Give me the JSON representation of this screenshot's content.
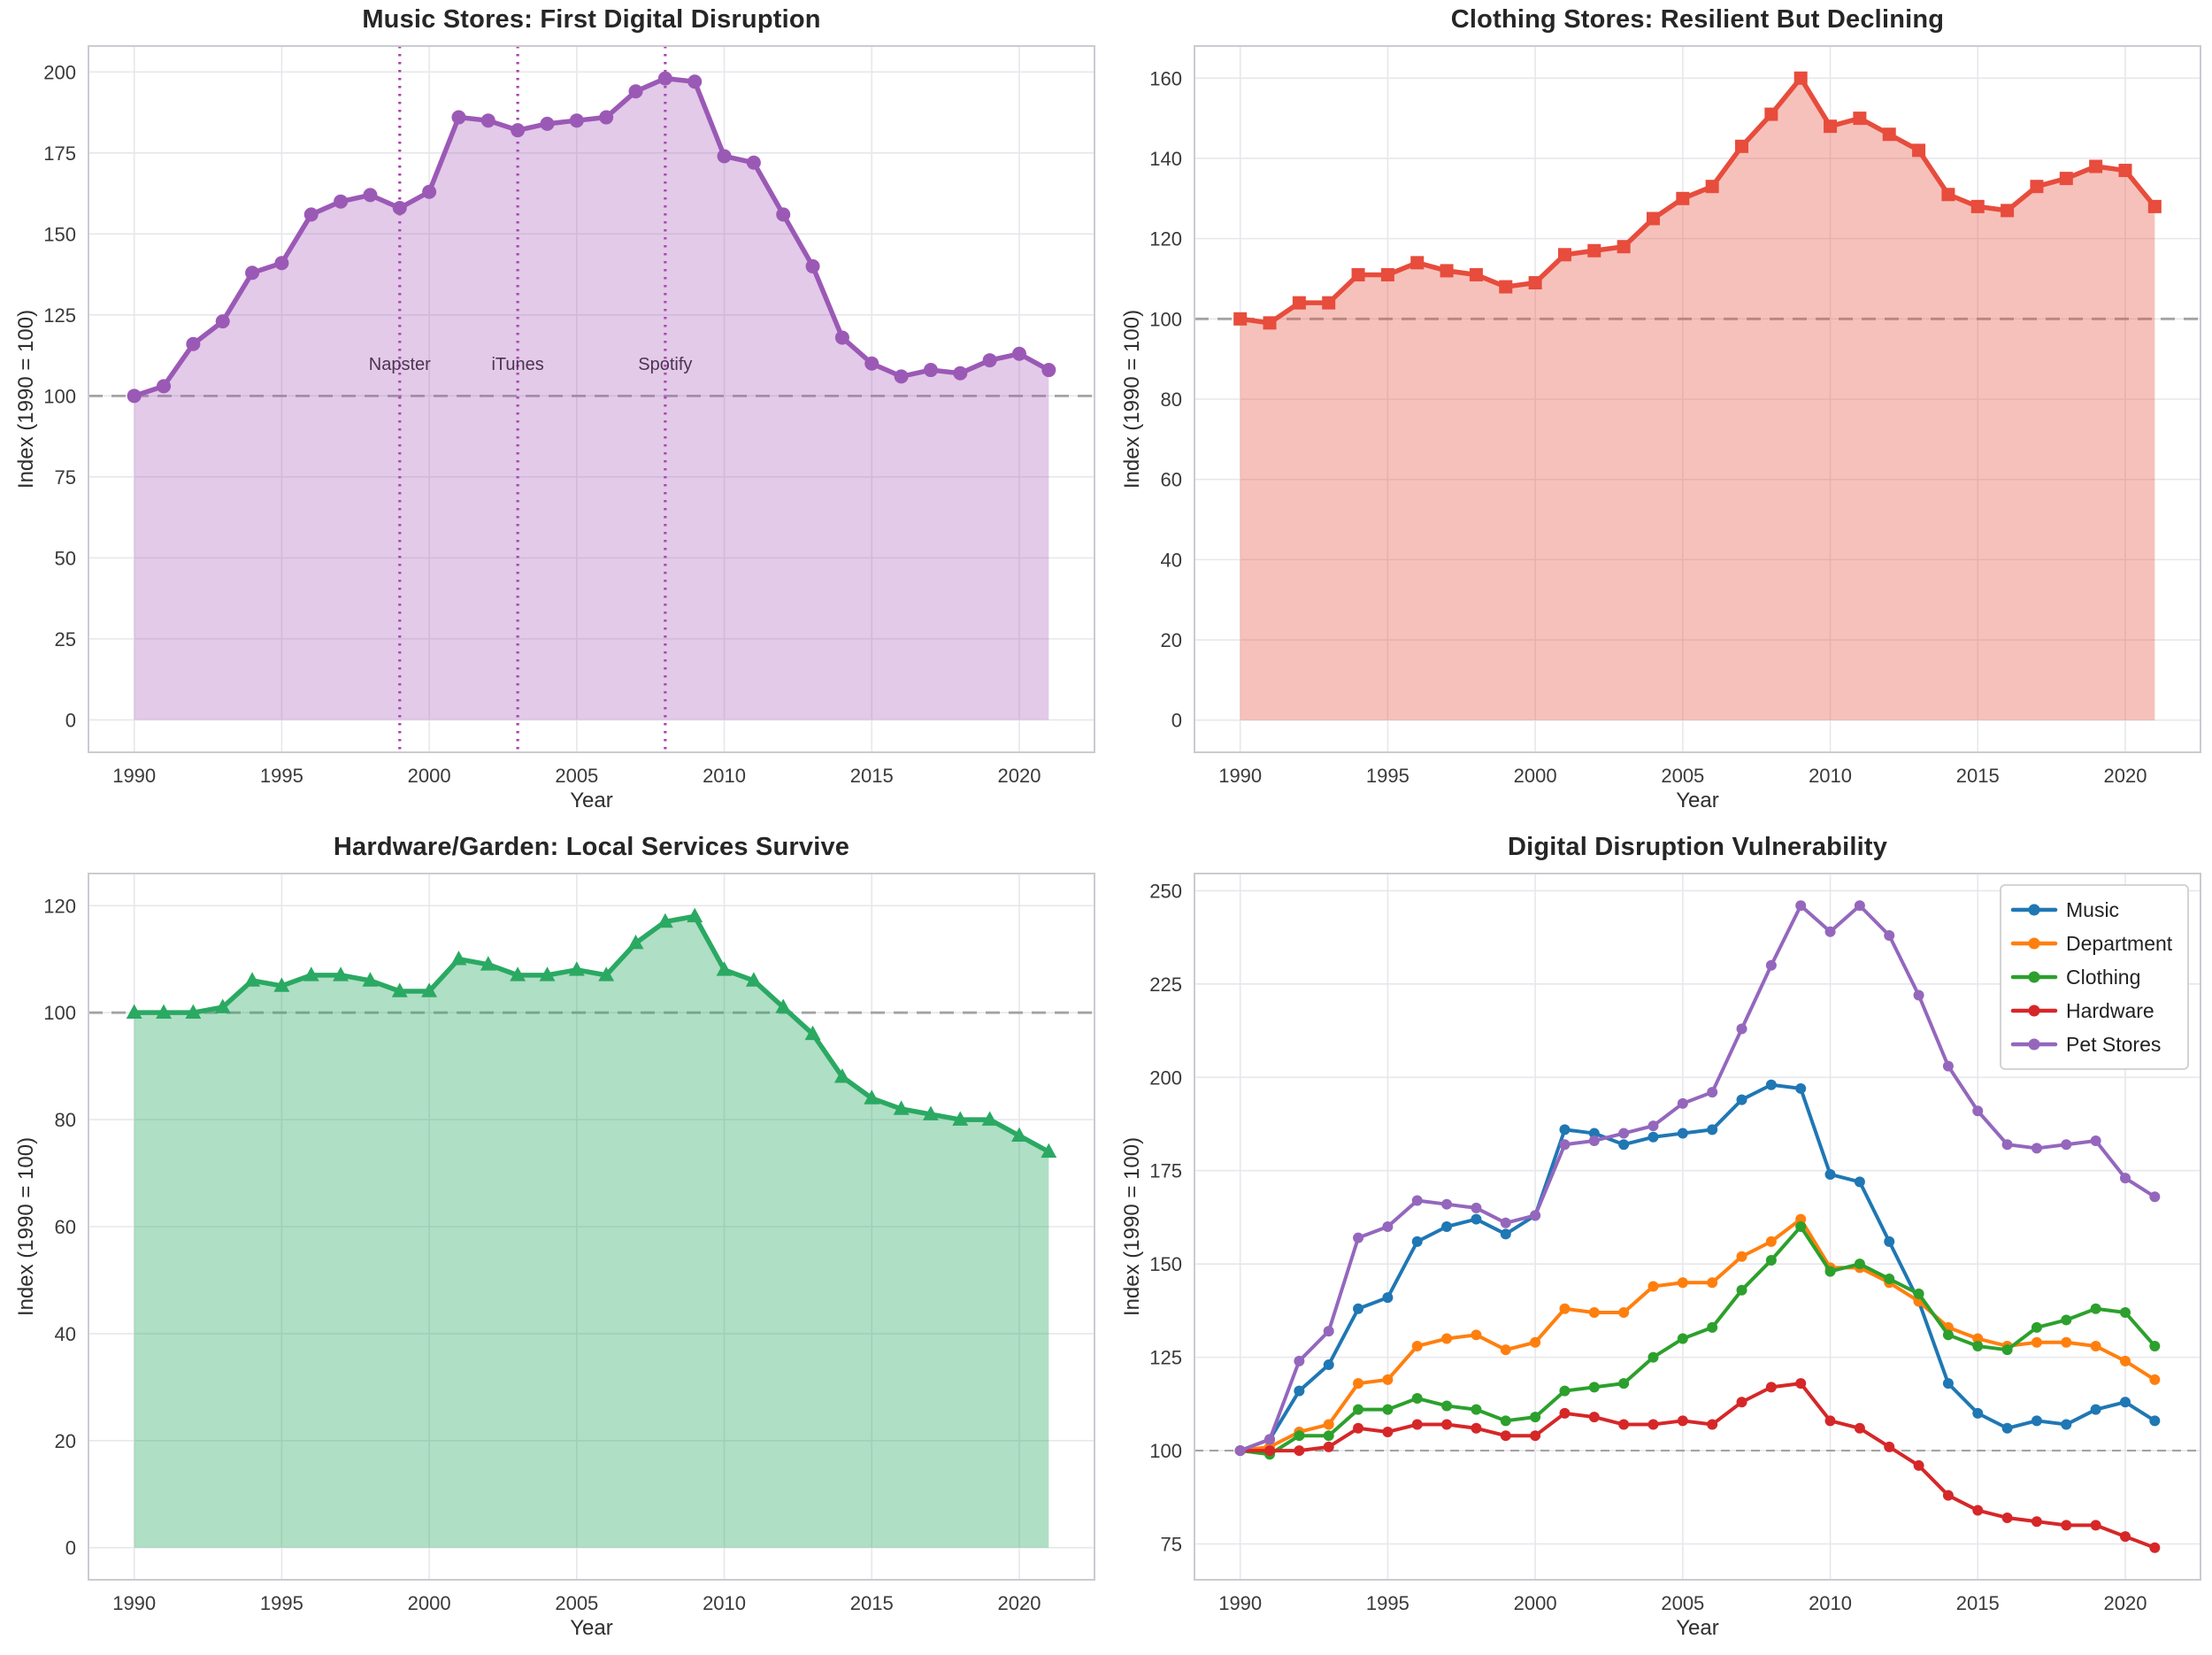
{
  "page": {
    "background": "#ffffff",
    "grid_color": "#e7e7ec",
    "spine_color": "#c9ccd1",
    "baseline_color": "#a3a3a3",
    "tick_color": "#3a3a3a"
  },
  "chart_data": [
    {
      "type": "area",
      "title": "Music Stores: First Digital Disruption",
      "xlabel": "Year",
      "ylabel": "Index (1990 = 100)",
      "color": "#9b59b6",
      "fill": "rgba(165, 90, 185, 0.32)",
      "marker": "circle",
      "marker_size": 8,
      "line_width": 5.5,
      "x": [
        1990,
        1991,
        1992,
        1993,
        1994,
        1995,
        1996,
        1997,
        1998,
        1999,
        2000,
        2001,
        2002,
        2003,
        2004,
        2005,
        2006,
        2007,
        2008,
        2009,
        2010,
        2011,
        2012,
        2013,
        2014,
        2015,
        2016,
        2017,
        2018,
        2019,
        2020,
        2021
      ],
      "values": [
        100,
        103,
        116,
        123,
        138,
        141,
        156,
        160,
        162,
        158,
        163,
        186,
        185,
        182,
        184,
        185,
        186,
        194,
        198,
        197,
        174,
        172,
        156,
        140,
        118,
        110,
        106,
        108,
        107,
        111,
        113,
        108
      ],
      "xlim": [
        1988.45,
        2022.55
      ],
      "ylim": [
        -10,
        208
      ],
      "xticks": [
        1990,
        1995,
        2000,
        2005,
        2010,
        2015,
        2020
      ],
      "yticks": [
        0,
        25,
        50,
        75,
        100,
        125,
        150,
        175,
        200
      ],
      "baseline": 100,
      "grid": true,
      "vline_color": "#b03cb0",
      "vline_label_y": 108,
      "vlines": [
        {
          "x": 1999,
          "label": "Napster"
        },
        {
          "x": 2003,
          "label": "iTunes"
        },
        {
          "x": 2008,
          "label": "Spotify"
        }
      ]
    },
    {
      "type": "area",
      "title": "Clothing Stores: Resilient But Declining",
      "xlabel": "Year",
      "ylabel": "Index (1990 = 100)",
      "color": "#e74c3c",
      "fill": "rgba(231, 76, 60, 0.35)",
      "marker": "square",
      "marker_size": 7.5,
      "line_width": 5.5,
      "x": [
        1990,
        1991,
        1992,
        1993,
        1994,
        1995,
        1996,
        1997,
        1998,
        1999,
        2000,
        2001,
        2002,
        2003,
        2004,
        2005,
        2006,
        2007,
        2008,
        2009,
        2010,
        2011,
        2012,
        2013,
        2014,
        2015,
        2016,
        2017,
        2018,
        2019,
        2020,
        2021
      ],
      "values": [
        100,
        99,
        104,
        104,
        111,
        111,
        114,
        112,
        111,
        108,
        109,
        116,
        117,
        118,
        125,
        130,
        133,
        143,
        151,
        160,
        148,
        150,
        146,
        142,
        131,
        128,
        127,
        133,
        135,
        138,
        137,
        128
      ],
      "xlim": [
        1988.45,
        2022.55
      ],
      "ylim": [
        -8,
        168
      ],
      "xticks": [
        1990,
        1995,
        2000,
        2005,
        2010,
        2015,
        2020
      ],
      "yticks": [
        0,
        20,
        40,
        60,
        80,
        100,
        120,
        140,
        160
      ],
      "baseline": 100,
      "grid": true,
      "vlines": []
    },
    {
      "type": "area",
      "title": "Hardware/Garden: Local Services Survive",
      "xlabel": "Year",
      "ylabel": "Index (1990 = 100)",
      "color": "#2aa963",
      "fill": "rgba(46, 171, 100, 0.38)",
      "marker": "triangle",
      "marker_size": 8,
      "line_width": 5.5,
      "x": [
        1990,
        1991,
        1992,
        1993,
        1994,
        1995,
        1996,
        1997,
        1998,
        1999,
        2000,
        2001,
        2002,
        2003,
        2004,
        2005,
        2006,
        2007,
        2008,
        2009,
        2010,
        2011,
        2012,
        2013,
        2014,
        2015,
        2016,
        2017,
        2018,
        2019,
        2020,
        2021
      ],
      "values": [
        100,
        100,
        100,
        101,
        106,
        105,
        107,
        107,
        106,
        104,
        104,
        110,
        109,
        107,
        107,
        108,
        107,
        113,
        117,
        118,
        108,
        106,
        101,
        96,
        88,
        84,
        82,
        81,
        80,
        80,
        77,
        74
      ],
      "xlim": [
        1988.45,
        2022.55
      ],
      "ylim": [
        -6,
        126
      ],
      "xticks": [
        1990,
        1995,
        2000,
        2005,
        2010,
        2015,
        2020
      ],
      "yticks": [
        0,
        20,
        40,
        60,
        80,
        100,
        120
      ],
      "baseline": 100,
      "grid": true,
      "vlines": []
    },
    {
      "type": "line",
      "title": "Digital Disruption Vulnerability",
      "xlabel": "Year",
      "ylabel": "Index (1990 = 100)",
      "marker": "circle",
      "marker_size": 6,
      "line_width": 4,
      "x": [
        1990,
        1991,
        1992,
        1993,
        1994,
        1995,
        1996,
        1997,
        1998,
        1999,
        2000,
        2001,
        2002,
        2003,
        2004,
        2005,
        2006,
        2007,
        2008,
        2009,
        2010,
        2011,
        2012,
        2013,
        2014,
        2015,
        2016,
        2017,
        2018,
        2019,
        2020,
        2021
      ],
      "series": [
        {
          "name": "Music",
          "color": "#1f77b4",
          "values": [
            100,
            103,
            116,
            123,
            138,
            141,
            156,
            160,
            162,
            158,
            163,
            186,
            185,
            182,
            184,
            185,
            186,
            194,
            198,
            197,
            174,
            172,
            156,
            140,
            118,
            110,
            106,
            108,
            107,
            111,
            113,
            108
          ]
        },
        {
          "name": "Department",
          "color": "#ff7f0e",
          "values": [
            100,
            101,
            105,
            107,
            118,
            119,
            128,
            130,
            131,
            127,
            129,
            138,
            137,
            137,
            144,
            145,
            145,
            152,
            156,
            162,
            149,
            149,
            145,
            140,
            133,
            130,
            128,
            129,
            129,
            128,
            124,
            119
          ]
        },
        {
          "name": "Clothing",
          "color": "#2ca02c",
          "values": [
            100,
            99,
            104,
            104,
            111,
            111,
            114,
            112,
            111,
            108,
            109,
            116,
            117,
            118,
            125,
            130,
            133,
            143,
            151,
            160,
            148,
            150,
            146,
            142,
            131,
            128,
            127,
            133,
            135,
            138,
            137,
            128
          ]
        },
        {
          "name": "Hardware",
          "color": "#d62728",
          "values": [
            100,
            100,
            100,
            101,
            106,
            105,
            107,
            107,
            106,
            104,
            104,
            110,
            109,
            107,
            107,
            108,
            107,
            113,
            117,
            118,
            108,
            106,
            101,
            96,
            88,
            84,
            82,
            81,
            80,
            80,
            77,
            74
          ]
        },
        {
          "name": "Pet Stores",
          "color": "#9467bd",
          "values": [
            100,
            103,
            124,
            132,
            157,
            160,
            167,
            166,
            165,
            161,
            163,
            182,
            183,
            185,
            187,
            193,
            196,
            213,
            230,
            246,
            239,
            246,
            238,
            222,
            203,
            191,
            182,
            181,
            182,
            183,
            173,
            168
          ]
        }
      ],
      "xlim": [
        1988.45,
        2022.55
      ],
      "ylim": [
        65.4,
        254.6
      ],
      "xticks": [
        1990,
        1995,
        2000,
        2005,
        2010,
        2015,
        2020
      ],
      "yticks": [
        75,
        100,
        125,
        150,
        175,
        200,
        225,
        250
      ],
      "baseline": 100,
      "grid": true,
      "legend": true,
      "legend_position": "upper-right",
      "vlines": []
    }
  ]
}
